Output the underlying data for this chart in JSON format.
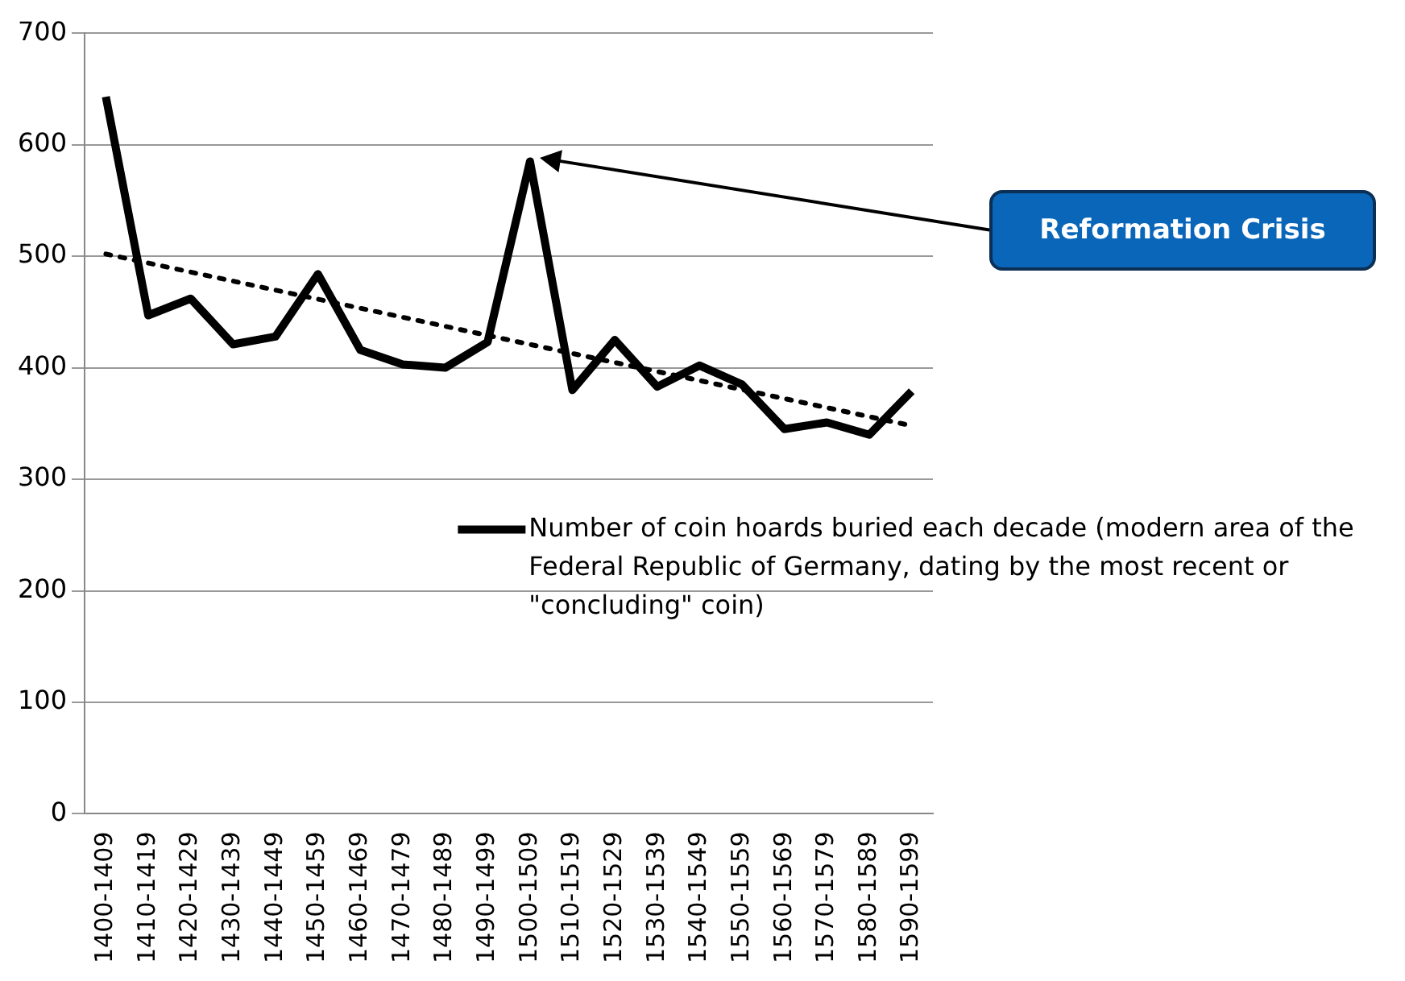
{
  "chart_data": {
    "type": "line",
    "categories": [
      "1400-1409",
      "1410-1419",
      "1420-1429",
      "1430-1439",
      "1440-1449",
      "1450-1459",
      "1460-1469",
      "1470-1479",
      "1480-1489",
      "1490-1499",
      "1500-1509",
      "1510-1519",
      "1520-1529",
      "1530-1539",
      "1540-1549",
      "1550-1559",
      "1560-1569",
      "1570-1579",
      "1580-1589",
      "1590-1599"
    ],
    "series": [
      {
        "name": "Number of coin hoards buried each decade (modern area of the Federal Republic of Germany, dating by the most recent or \"concluding\" coin)",
        "color": "#000000",
        "values": [
          643,
          447,
          462,
          421,
          428,
          484,
          416,
          403,
          400,
          423,
          585,
          380,
          425,
          383,
          402,
          385,
          345,
          351,
          340,
          379
        ]
      },
      {
        "type": "line",
        "color": "#000000",
        "line_style": "dotted",
        "x": [
          "1400-1409",
          "1590-1599"
        ],
        "values": [
          502,
          348
        ]
      }
    ],
    "ylim": [
      0,
      700
    ],
    "yticks": [
      0,
      100,
      200,
      300,
      400,
      500,
      600,
      700
    ],
    "grid": "y",
    "legend": "right",
    "marker": "none",
    "line_style": "solid",
    "annotations": [
      "Reformation Crisis"
    ]
  }
}
